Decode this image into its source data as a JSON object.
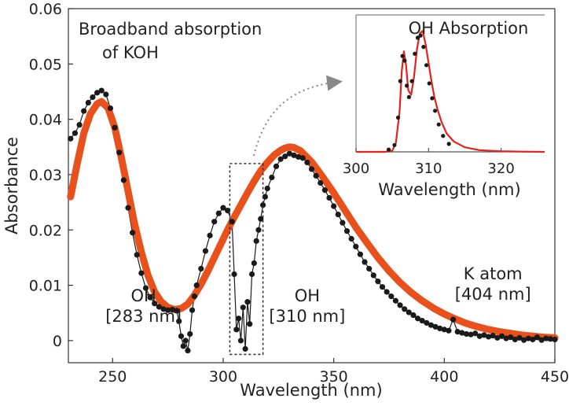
{
  "chart_data": [
    {
      "type": "scatter",
      "xlabel": "Wavelength (nm)",
      "ylabel": "Absorbance",
      "xlim": [
        230,
        450
      ],
      "ylim": [
        -0.004,
        0.06
      ],
      "x_ticks": [
        "250",
        "300",
        "350",
        "400",
        "450"
      ],
      "y_ticks": [
        "0",
        "0.01",
        "0.02",
        "0.03",
        "0.04",
        "0.05",
        "0.06"
      ],
      "x_tick_values": [
        250,
        300,
        350,
        400,
        450
      ],
      "y_tick_values": [
        0,
        0.01,
        0.02,
        0.03,
        0.04,
        0.05,
        0.06
      ],
      "grid": false,
      "colors": {
        "measured": "#1a1a1a",
        "fit": "#e8501c",
        "box": "#333333",
        "arrow": "#888888"
      },
      "title_lines": [
        "Broadband absorption",
        "of KOH"
      ],
      "annotations": [
        {
          "lines": [
            "OH",
            "[283 nm]"
          ],
          "x": 264,
          "y": 0.0045
        },
        {
          "lines": [
            "OH",
            "[310 nm]"
          ],
          "x": 338,
          "y": 0.0045
        },
        {
          "lines": [
            "K atom",
            "[404 nm]"
          ],
          "x": 422,
          "y": 0.0085
        }
      ],
      "highlight_box": {
        "x": [
          303,
          318
        ],
        "y": [
          -0.0025,
          0.032
        ]
      },
      "series": [
        {
          "style": "dots",
          "x": [
            231,
            233,
            235,
            237,
            239,
            241,
            243,
            245,
            247,
            249,
            251,
            253,
            255,
            257,
            259,
            261,
            263,
            265,
            267,
            269,
            271,
            273,
            275,
            277,
            279,
            280,
            281,
            282,
            283,
            284,
            285,
            286,
            287,
            288,
            290,
            292,
            294,
            296,
            298,
            300,
            302,
            304,
            305,
            306,
            307,
            308,
            309,
            310,
            311,
            312,
            313,
            314,
            315,
            316,
            317,
            318,
            319,
            320,
            322,
            324,
            326,
            328,
            330,
            332,
            334,
            336,
            338,
            340,
            342,
            344,
            346,
            348,
            350,
            352,
            354,
            356,
            358,
            360,
            362,
            364,
            366,
            368,
            370,
            372,
            374,
            376,
            378,
            380,
            382,
            384,
            386,
            388,
            390,
            392,
            394,
            396,
            398,
            400,
            402,
            404,
            406,
            408,
            410,
            412,
            414,
            416,
            418,
            420,
            422,
            424,
            426,
            428,
            430,
            432,
            434,
            436,
            438,
            440,
            442,
            444,
            446,
            448,
            450
          ],
          "y": [
            0.0365,
            0.0375,
            0.039,
            0.0415,
            0.043,
            0.044,
            0.0448,
            0.0452,
            0.0445,
            0.042,
            0.0385,
            0.034,
            0.029,
            0.024,
            0.0195,
            0.0155,
            0.0122,
            0.0095,
            0.0078,
            0.0067,
            0.0061,
            0.0057,
            0.0055,
            0.0056,
            0.0054,
            0.0035,
            0.0008,
            -0.001,
            0.0,
            -0.0018,
            0.0012,
            0.0055,
            0.008,
            0.01,
            0.013,
            0.0162,
            0.019,
            0.0215,
            0.023,
            0.024,
            0.0235,
            0.0215,
            0.012,
            0.002,
            0.004,
            0.0,
            0.006,
            -0.0015,
            0.007,
            0.003,
            0.012,
            0.014,
            0.018,
            0.02,
            0.022,
            0.0245,
            0.026,
            0.0275,
            0.0295,
            0.0315,
            0.0328,
            0.0333,
            0.0338,
            0.0335,
            0.0332,
            0.033,
            0.0322,
            0.031,
            0.0298,
            0.0285,
            0.0272,
            0.0258,
            0.0243,
            0.0228,
            0.0213,
            0.0198,
            0.0184,
            0.017,
            0.0156,
            0.0142,
            0.013,
            0.0118,
            0.0107,
            0.0097,
            0.0088,
            0.008,
            0.0072,
            0.0064,
            0.0057,
            0.0051,
            0.0046,
            0.004,
            0.0036,
            0.0032,
            0.0028,
            0.0025,
            0.0022,
            0.002,
            0.0018,
            0.0038,
            0.0016,
            0.0014,
            0.0012,
            0.0011,
            0.0013,
            0.0008,
            0.001,
            0.0007,
            0.0009,
            0.0005,
            0.0008,
            0.0004,
            0.0006,
            0.0002,
            0.0005,
            0.0001,
            0.0004,
            0.0002,
            0.0006,
            0.0001,
            0.0004,
            0.0003,
            0.0002
          ]
        },
        {
          "style": "line",
          "x": [
            231,
            234,
            237,
            240,
            243,
            245,
            248,
            251,
            254,
            257,
            260,
            263,
            266,
            269,
            272,
            275,
            278,
            281,
            284,
            287,
            290,
            293,
            296,
            299,
            302,
            305,
            308,
            311,
            314,
            317,
            320,
            323,
            326,
            328,
            330,
            332,
            335,
            340,
            345,
            350,
            355,
            360,
            365,
            370,
            375,
            380,
            385,
            390,
            395,
            400,
            405,
            410,
            415,
            420,
            425,
            430,
            435,
            440,
            445,
            450
          ],
          "y": [
            0.026,
            0.032,
            0.0375,
            0.041,
            0.0428,
            0.0432,
            0.042,
            0.0385,
            0.033,
            0.027,
            0.021,
            0.016,
            0.0118,
            0.0088,
            0.007,
            0.006,
            0.0056,
            0.0058,
            0.0066,
            0.0082,
            0.0102,
            0.0125,
            0.015,
            0.0175,
            0.02,
            0.0223,
            0.0245,
            0.0267,
            0.0288,
            0.0307,
            0.0322,
            0.0335,
            0.0344,
            0.0348,
            0.035,
            0.0349,
            0.0343,
            0.0323,
            0.0296,
            0.0267,
            0.0236,
            0.0205,
            0.0177,
            0.015,
            0.0126,
            0.0105,
            0.0087,
            0.0072,
            0.0059,
            0.0048,
            0.0039,
            0.0031,
            0.0025,
            0.002,
            0.0016,
            0.0013,
            0.001,
            0.0008,
            0.0006,
            0.0005
          ]
        }
      ]
    },
    {
      "type": "line",
      "title": "OH Absorption",
      "xlabel": "Wavelength (nm)",
      "xlim": [
        300,
        326
      ],
      "ylim": [
        0,
        1.2
      ],
      "x_ticks": [
        "300",
        "310",
        "320"
      ],
      "x_tick_values": [
        300,
        310,
        320
      ],
      "colors": {
        "fit": "#e8201c",
        "measured": "#1a1a1a",
        "frame": "#999999"
      },
      "series": [
        {
          "style": "line",
          "x": [
            300,
            303,
            304,
            305,
            305.5,
            306,
            306.3,
            306.6,
            306.9,
            307.2,
            307.6,
            308.0,
            308.4,
            308.8,
            309.2,
            309.6,
            310.0,
            310.4,
            310.8,
            311.2,
            311.8,
            312.5,
            313.5,
            315,
            317,
            320,
            323,
            326
          ],
          "y": [
            0.0,
            0.0,
            0.0,
            0.01,
            0.08,
            0.35,
            0.7,
            0.88,
            0.76,
            0.54,
            0.5,
            0.66,
            0.9,
            1.04,
            1.06,
            0.94,
            0.78,
            0.62,
            0.48,
            0.38,
            0.26,
            0.16,
            0.09,
            0.04,
            0.015,
            0.005,
            0.002,
            0.0
          ]
        },
        {
          "style": "dots",
          "x": [
            304.5,
            305.3,
            305.8,
            306.1,
            306.4,
            306.7,
            307.0,
            307.3,
            307.7,
            308.1,
            308.5,
            308.9,
            309.3,
            309.7,
            310.1,
            310.5,
            310.9,
            311.4,
            312.0,
            312.8
          ],
          "y": [
            0.02,
            0.06,
            0.3,
            0.62,
            0.84,
            0.8,
            0.58,
            0.48,
            0.62,
            0.86,
            1.0,
            1.02,
            0.92,
            0.76,
            0.6,
            0.47,
            0.36,
            0.24,
            0.14,
            0.07
          ]
        }
      ]
    }
  ]
}
